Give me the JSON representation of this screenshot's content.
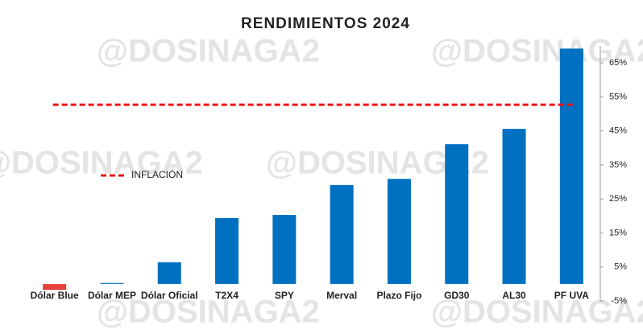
{
  "chart_data": {
    "type": "bar",
    "title": "RENDIMIENTOS 2024",
    "watermark": "@DOSINAGA2",
    "categories": [
      "Dólar Blue",
      "Dólar MEP",
      "Dólar Oficial",
      "T2X4",
      "SPY",
      "Merval",
      "Plazo Fijo",
      "GD30",
      "AL30",
      "PF UVA"
    ],
    "values": [
      -1.7,
      0.3,
      6.4,
      19.4,
      20.3,
      29.1,
      30.9,
      41.1,
      45.6,
      69.2
    ],
    "colors": [
      "#e8403a",
      "#0070c0",
      "#0070c0",
      "#0070c0",
      "#0070c0",
      "#0070c0",
      "#0070c0",
      "#0070c0",
      "#0070c0",
      "#0070c0"
    ],
    "reference_line": {
      "name": "INFLACIÓN",
      "value": 52.7,
      "color": "#ee1111"
    },
    "ylim": [
      -5,
      70
    ],
    "yticks": [
      {
        "value": -5,
        "label": "-5%"
      },
      {
        "value": 5,
        "label": "5%"
      },
      {
        "value": 15,
        "label": "15%"
      },
      {
        "value": 25,
        "label": "25%"
      },
      {
        "value": 35,
        "label": "35%"
      },
      {
        "value": 45,
        "label": "45%"
      },
      {
        "value": 55,
        "label": "55%"
      },
      {
        "value": 65,
        "label": "65%"
      }
    ],
    "grid": false,
    "y_axis_side": "right"
  }
}
